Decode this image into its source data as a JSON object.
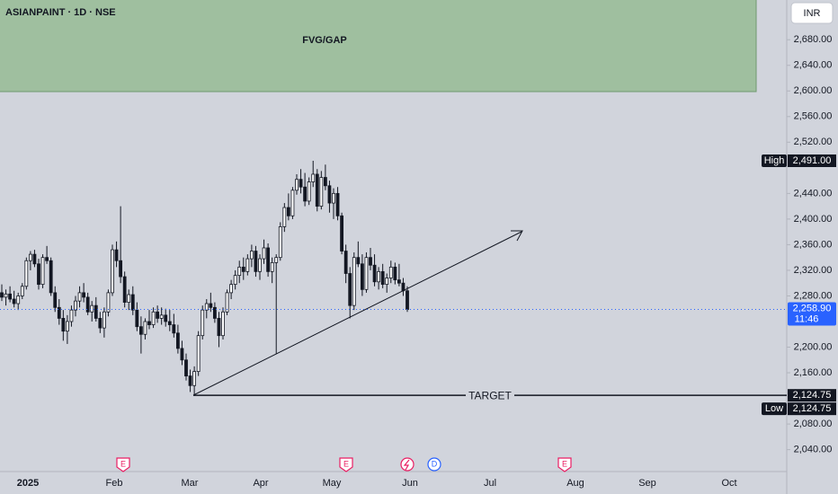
{
  "header": {
    "symbol": "ASIANPAINT · 1D · NSE",
    "currency": "INR"
  },
  "chart_data": {
    "type": "candlestick",
    "ylim": [
      2010,
      2742
    ],
    "yticks": [
      {
        "value": 2680,
        "label": "2,680.00"
      },
      {
        "value": 2640,
        "label": "2,640.00"
      },
      {
        "value": 2600,
        "label": "2,600.00"
      },
      {
        "value": 2560,
        "label": "2,560.00"
      },
      {
        "value": 2520,
        "label": "2,520.00"
      },
      {
        "value": 2440,
        "label": "2,440.00"
      },
      {
        "value": 2400,
        "label": "2,400.00"
      },
      {
        "value": 2360,
        "label": "2,360.00"
      },
      {
        "value": 2320,
        "label": "2,320.00"
      },
      {
        "value": 2280,
        "label": "2,280.00"
      },
      {
        "value": 2200,
        "label": "2,200.00"
      },
      {
        "value": 2160,
        "label": "2,160.00"
      },
      {
        "value": 2080,
        "label": "2,080.00"
      },
      {
        "value": 2040,
        "label": "2,040.00"
      }
    ],
    "x_labels": [
      "2025",
      "Feb",
      "Mar",
      "Apr",
      "May",
      "Jun",
      "Jul",
      "Aug",
      "Sep",
      "Oct"
    ],
    "events": [
      "E",
      "E",
      "D",
      "E"
    ],
    "annotations": {
      "zone": "FVG/GAP",
      "target": "TARGET"
    },
    "last_price": {
      "value": 2258.9,
      "label": "2,258.90",
      "countdown": "11:46"
    },
    "high": {
      "name": "High",
      "value": 2491,
      "label": "2,491.00"
    },
    "low": {
      "name": "Low",
      "value": 2124.75,
      "label": "2,124.75"
    },
    "target_price": {
      "value": 2124.75,
      "label": "2,124.75"
    },
    "ohlc": [
      [
        2285,
        2298,
        2272,
        2278
      ],
      [
        2278,
        2290,
        2265,
        2283
      ],
      [
        2283,
        2295,
        2270,
        2275
      ],
      [
        2275,
        2288,
        2262,
        2268
      ],
      [
        2268,
        2285,
        2258,
        2280
      ],
      [
        2280,
        2300,
        2275,
        2295
      ],
      [
        2295,
        2340,
        2290,
        2335
      ],
      [
        2335,
        2350,
        2320,
        2345
      ],
      [
        2345,
        2352,
        2325,
        2330
      ],
      [
        2330,
        2338,
        2290,
        2298
      ],
      [
        2298,
        2345,
        2292,
        2340
      ],
      [
        2340,
        2358,
        2330,
        2335
      ],
      [
        2335,
        2340,
        2280,
        2285
      ],
      [
        2285,
        2295,
        2255,
        2262
      ],
      [
        2262,
        2275,
        2235,
        2245
      ],
      [
        2245,
        2258,
        2210,
        2225
      ],
      [
        2225,
        2250,
        2205,
        2240
      ],
      [
        2240,
        2265,
        2232,
        2258
      ],
      [
        2258,
        2280,
        2248,
        2272
      ],
      [
        2272,
        2295,
        2262,
        2285
      ],
      [
        2285,
        2300,
        2270,
        2278
      ],
      [
        2278,
        2285,
        2250,
        2255
      ],
      [
        2255,
        2272,
        2240,
        2265
      ],
      [
        2265,
        2278,
        2240,
        2245
      ],
      [
        2245,
        2255,
        2222,
        2230
      ],
      [
        2230,
        2262,
        2215,
        2255
      ],
      [
        2255,
        2290,
        2248,
        2285
      ],
      [
        2285,
        2360,
        2280,
        2352
      ],
      [
        2352,
        2365,
        2325,
        2335
      ],
      [
        2335,
        2420,
        2300,
        2310
      ],
      [
        2310,
        2318,
        2262,
        2270
      ],
      [
        2270,
        2290,
        2258,
        2282
      ],
      [
        2282,
        2295,
        2250,
        2258
      ],
      [
        2258,
        2270,
        2225,
        2232
      ],
      [
        2232,
        2248,
        2190,
        2220
      ],
      [
        2220,
        2245,
        2212,
        2240
      ],
      [
        2240,
        2258,
        2228,
        2235
      ],
      [
        2235,
        2262,
        2230,
        2255
      ],
      [
        2255,
        2265,
        2238,
        2245
      ],
      [
        2245,
        2262,
        2235,
        2250
      ],
      [
        2250,
        2260,
        2232,
        2240
      ],
      [
        2240,
        2258,
        2225,
        2235
      ],
      [
        2235,
        2252,
        2215,
        2222
      ],
      [
        2222,
        2235,
        2190,
        2198
      ],
      [
        2198,
        2210,
        2172,
        2180
      ],
      [
        2180,
        2190,
        2148,
        2155
      ],
      [
        2155,
        2165,
        2130,
        2140
      ],
      [
        2140,
        2170,
        2124.75,
        2162
      ],
      [
        2162,
        2225,
        2155,
        2218
      ],
      [
        2218,
        2265,
        2212,
        2258
      ],
      [
        2258,
        2275,
        2245,
        2268
      ],
      [
        2268,
        2285,
        2255,
        2262
      ],
      [
        2262,
        2270,
        2238,
        2245
      ],
      [
        2245,
        2255,
        2200,
        2218
      ],
      [
        2218,
        2262,
        2212,
        2255
      ],
      [
        2255,
        2290,
        2250,
        2285
      ],
      [
        2285,
        2305,
        2275,
        2298
      ],
      [
        2298,
        2320,
        2290,
        2312
      ],
      [
        2312,
        2335,
        2300,
        2325
      ],
      [
        2325,
        2340,
        2305,
        2318
      ],
      [
        2318,
        2345,
        2312,
        2338
      ],
      [
        2338,
        2360,
        2325,
        2350
      ],
      [
        2350,
        2358,
        2310,
        2318
      ],
      [
        2318,
        2345,
        2305,
        2338
      ],
      [
        2338,
        2368,
        2330,
        2355
      ],
      [
        2355,
        2362,
        2310,
        2318
      ],
      [
        2318,
        2340,
        2300,
        2332
      ],
      [
        2332,
        2345,
        2190,
        2340
      ],
      [
        2340,
        2395,
        2335,
        2388
      ],
      [
        2388,
        2425,
        2380,
        2418
      ],
      [
        2418,
        2440,
        2398,
        2405
      ],
      [
        2405,
        2450,
        2400,
        2445
      ],
      [
        2445,
        2470,
        2438,
        2462
      ],
      [
        2462,
        2478,
        2440,
        2450
      ],
      [
        2450,
        2472,
        2420,
        2428
      ],
      [
        2428,
        2465,
        2422,
        2458
      ],
      [
        2458,
        2491,
        2450,
        2470
      ],
      [
        2470,
        2478,
        2412,
        2420
      ],
      [
        2420,
        2475,
        2415,
        2465
      ],
      [
        2465,
        2485,
        2445,
        2452
      ],
      [
        2452,
        2460,
        2410,
        2425
      ],
      [
        2425,
        2448,
        2400,
        2440
      ],
      [
        2440,
        2450,
        2398,
        2405
      ],
      [
        2405,
        2410,
        2345,
        2350
      ],
      [
        2350,
        2360,
        2300,
        2315
      ],
      [
        2315,
        2325,
        2245,
        2265
      ],
      [
        2265,
        2348,
        2258,
        2340
      ],
      [
        2340,
        2365,
        2325,
        2330
      ],
      [
        2330,
        2345,
        2280,
        2290
      ],
      [
        2290,
        2348,
        2285,
        2340
      ],
      [
        2340,
        2355,
        2320,
        2328
      ],
      [
        2328,
        2345,
        2295,
        2302
      ],
      [
        2302,
        2325,
        2290,
        2318
      ],
      [
        2318,
        2330,
        2292,
        2298
      ],
      [
        2298,
        2315,
        2285,
        2308
      ],
      [
        2308,
        2335,
        2300,
        2325
      ],
      [
        2325,
        2332,
        2298,
        2305
      ],
      [
        2305,
        2330,
        2295,
        2300
      ],
      [
        2300,
        2308,
        2280,
        2288
      ],
      [
        2288,
        2295,
        2255,
        2258.9
      ]
    ]
  }
}
